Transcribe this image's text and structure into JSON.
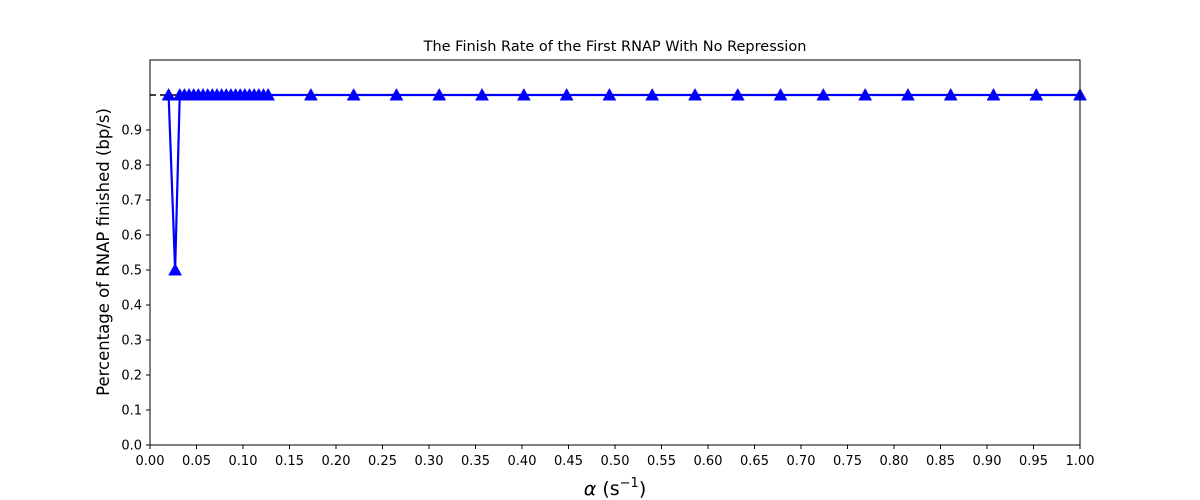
{
  "chart_data": {
    "type": "line",
    "title": "The Finish Rate of the First RNAP With No Repression",
    "xlabel_symbol": "α",
    "xlabel_unit": "(s",
    "xlabel_exponent": "−1",
    "xlabel_close": ")",
    "ylabel": "Percentage of RNAP finished (bp/s)",
    "xlim": [
      0.0,
      1.0
    ],
    "ylim": [
      0.0,
      1.1
    ],
    "xticks": [
      "0.00",
      "0.05",
      "0.10",
      "0.15",
      "0.20",
      "0.25",
      "0.30",
      "0.35",
      "0.40",
      "0.45",
      "0.50",
      "0.55",
      "0.60",
      "0.65",
      "0.70",
      "0.75",
      "0.80",
      "0.85",
      "0.90",
      "0.95",
      "1.00"
    ],
    "yticks": [
      "0.0",
      "0.1",
      "0.2",
      "0.3",
      "0.4",
      "0.5",
      "0.6",
      "0.7",
      "0.8",
      "0.9"
    ],
    "reference_line": {
      "y": 1.0,
      "x_start": 0.0,
      "x_end": 1.0,
      "style": "dashed",
      "color": "#000000"
    },
    "grid": false,
    "series": [
      {
        "color": "#0000ff",
        "marker": "triangle-up",
        "x": [
          0.02,
          0.027,
          0.032,
          0.037,
          0.042,
          0.047,
          0.052,
          0.057,
          0.062,
          0.067,
          0.072,
          0.077,
          0.082,
          0.087,
          0.092,
          0.097,
          0.102,
          0.107,
          0.112,
          0.117,
          0.122,
          0.127,
          0.173,
          0.219,
          0.265,
          0.311,
          0.357,
          0.402,
          0.448,
          0.494,
          0.54,
          0.586,
          0.632,
          0.678,
          0.724,
          0.769,
          0.815,
          0.861,
          0.907,
          0.953,
          1.0
        ],
        "y": [
          1.0,
          0.5,
          1.0,
          1.0,
          1.0,
          1.0,
          1.0,
          1.0,
          1.0,
          1.0,
          1.0,
          1.0,
          1.0,
          1.0,
          1.0,
          1.0,
          1.0,
          1.0,
          1.0,
          1.0,
          1.0,
          1.0,
          1.0,
          1.0,
          1.0,
          1.0,
          1.0,
          1.0,
          1.0,
          1.0,
          1.0,
          1.0,
          1.0,
          1.0,
          1.0,
          1.0,
          1.0,
          1.0,
          1.0,
          1.0,
          1.0
        ]
      }
    ]
  }
}
